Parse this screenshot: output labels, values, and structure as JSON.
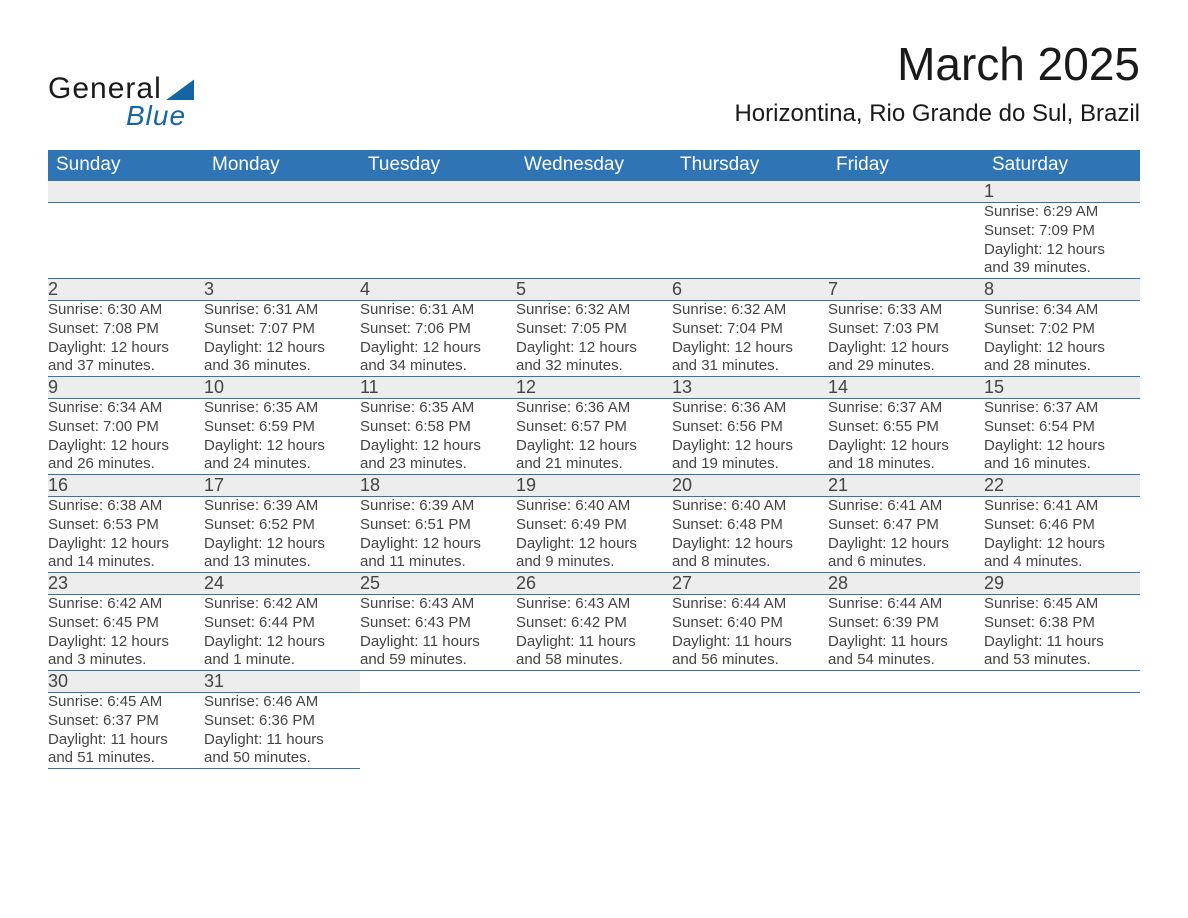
{
  "logo": {
    "word1": "General",
    "word2": "Blue",
    "triangle_color": "#1565a5"
  },
  "title": "March 2025",
  "location": "Horizontina, Rio Grande do Sul, Brazil",
  "colors": {
    "header_bg": "#2f74b5",
    "header_text": "#ffffff",
    "daynum_bg": "#ededed",
    "cell_text": "#444444",
    "border": "#2f74b5",
    "page_bg": "#ffffff",
    "title_text": "#1a1a1a"
  },
  "typography": {
    "title_fontsize": 46,
    "location_fontsize": 24,
    "weekday_fontsize": 19,
    "daynum_fontsize": 18,
    "detail_fontsize": 15,
    "font_family": "Arial, Helvetica, sans-serif"
  },
  "weekdays": [
    "Sunday",
    "Monday",
    "Tuesday",
    "Wednesday",
    "Thursday",
    "Friday",
    "Saturday"
  ],
  "weeks": [
    [
      null,
      null,
      null,
      null,
      null,
      null,
      {
        "day": "1",
        "sunrise": "Sunrise: 6:29 AM",
        "sunset": "Sunset: 7:09 PM",
        "daylight1": "Daylight: 12 hours",
        "daylight2": "and 39 minutes."
      }
    ],
    [
      {
        "day": "2",
        "sunrise": "Sunrise: 6:30 AM",
        "sunset": "Sunset: 7:08 PM",
        "daylight1": "Daylight: 12 hours",
        "daylight2": "and 37 minutes."
      },
      {
        "day": "3",
        "sunrise": "Sunrise: 6:31 AM",
        "sunset": "Sunset: 7:07 PM",
        "daylight1": "Daylight: 12 hours",
        "daylight2": "and 36 minutes."
      },
      {
        "day": "4",
        "sunrise": "Sunrise: 6:31 AM",
        "sunset": "Sunset: 7:06 PM",
        "daylight1": "Daylight: 12 hours",
        "daylight2": "and 34 minutes."
      },
      {
        "day": "5",
        "sunrise": "Sunrise: 6:32 AM",
        "sunset": "Sunset: 7:05 PM",
        "daylight1": "Daylight: 12 hours",
        "daylight2": "and 32 minutes."
      },
      {
        "day": "6",
        "sunrise": "Sunrise: 6:32 AM",
        "sunset": "Sunset: 7:04 PM",
        "daylight1": "Daylight: 12 hours",
        "daylight2": "and 31 minutes."
      },
      {
        "day": "7",
        "sunrise": "Sunrise: 6:33 AM",
        "sunset": "Sunset: 7:03 PM",
        "daylight1": "Daylight: 12 hours",
        "daylight2": "and 29 minutes."
      },
      {
        "day": "8",
        "sunrise": "Sunrise: 6:34 AM",
        "sunset": "Sunset: 7:02 PM",
        "daylight1": "Daylight: 12 hours",
        "daylight2": "and 28 minutes."
      }
    ],
    [
      {
        "day": "9",
        "sunrise": "Sunrise: 6:34 AM",
        "sunset": "Sunset: 7:00 PM",
        "daylight1": "Daylight: 12 hours",
        "daylight2": "and 26 minutes."
      },
      {
        "day": "10",
        "sunrise": "Sunrise: 6:35 AM",
        "sunset": "Sunset: 6:59 PM",
        "daylight1": "Daylight: 12 hours",
        "daylight2": "and 24 minutes."
      },
      {
        "day": "11",
        "sunrise": "Sunrise: 6:35 AM",
        "sunset": "Sunset: 6:58 PM",
        "daylight1": "Daylight: 12 hours",
        "daylight2": "and 23 minutes."
      },
      {
        "day": "12",
        "sunrise": "Sunrise: 6:36 AM",
        "sunset": "Sunset: 6:57 PM",
        "daylight1": "Daylight: 12 hours",
        "daylight2": "and 21 minutes."
      },
      {
        "day": "13",
        "sunrise": "Sunrise: 6:36 AM",
        "sunset": "Sunset: 6:56 PM",
        "daylight1": "Daylight: 12 hours",
        "daylight2": "and 19 minutes."
      },
      {
        "day": "14",
        "sunrise": "Sunrise: 6:37 AM",
        "sunset": "Sunset: 6:55 PM",
        "daylight1": "Daylight: 12 hours",
        "daylight2": "and 18 minutes."
      },
      {
        "day": "15",
        "sunrise": "Sunrise: 6:37 AM",
        "sunset": "Sunset: 6:54 PM",
        "daylight1": "Daylight: 12 hours",
        "daylight2": "and 16 minutes."
      }
    ],
    [
      {
        "day": "16",
        "sunrise": "Sunrise: 6:38 AM",
        "sunset": "Sunset: 6:53 PM",
        "daylight1": "Daylight: 12 hours",
        "daylight2": "and 14 minutes."
      },
      {
        "day": "17",
        "sunrise": "Sunrise: 6:39 AM",
        "sunset": "Sunset: 6:52 PM",
        "daylight1": "Daylight: 12 hours",
        "daylight2": "and 13 minutes."
      },
      {
        "day": "18",
        "sunrise": "Sunrise: 6:39 AM",
        "sunset": "Sunset: 6:51 PM",
        "daylight1": "Daylight: 12 hours",
        "daylight2": "and 11 minutes."
      },
      {
        "day": "19",
        "sunrise": "Sunrise: 6:40 AM",
        "sunset": "Sunset: 6:49 PM",
        "daylight1": "Daylight: 12 hours",
        "daylight2": "and 9 minutes."
      },
      {
        "day": "20",
        "sunrise": "Sunrise: 6:40 AM",
        "sunset": "Sunset: 6:48 PM",
        "daylight1": "Daylight: 12 hours",
        "daylight2": "and 8 minutes."
      },
      {
        "day": "21",
        "sunrise": "Sunrise: 6:41 AM",
        "sunset": "Sunset: 6:47 PM",
        "daylight1": "Daylight: 12 hours",
        "daylight2": "and 6 minutes."
      },
      {
        "day": "22",
        "sunrise": "Sunrise: 6:41 AM",
        "sunset": "Sunset: 6:46 PM",
        "daylight1": "Daylight: 12 hours",
        "daylight2": "and 4 minutes."
      }
    ],
    [
      {
        "day": "23",
        "sunrise": "Sunrise: 6:42 AM",
        "sunset": "Sunset: 6:45 PM",
        "daylight1": "Daylight: 12 hours",
        "daylight2": "and 3 minutes."
      },
      {
        "day": "24",
        "sunrise": "Sunrise: 6:42 AM",
        "sunset": "Sunset: 6:44 PM",
        "daylight1": "Daylight: 12 hours",
        "daylight2": "and 1 minute."
      },
      {
        "day": "25",
        "sunrise": "Sunrise: 6:43 AM",
        "sunset": "Sunset: 6:43 PM",
        "daylight1": "Daylight: 11 hours",
        "daylight2": "and 59 minutes."
      },
      {
        "day": "26",
        "sunrise": "Sunrise: 6:43 AM",
        "sunset": "Sunset: 6:42 PM",
        "daylight1": "Daylight: 11 hours",
        "daylight2": "and 58 minutes."
      },
      {
        "day": "27",
        "sunrise": "Sunrise: 6:44 AM",
        "sunset": "Sunset: 6:40 PM",
        "daylight1": "Daylight: 11 hours",
        "daylight2": "and 56 minutes."
      },
      {
        "day": "28",
        "sunrise": "Sunrise: 6:44 AM",
        "sunset": "Sunset: 6:39 PM",
        "daylight1": "Daylight: 11 hours",
        "daylight2": "and 54 minutes."
      },
      {
        "day": "29",
        "sunrise": "Sunrise: 6:45 AM",
        "sunset": "Sunset: 6:38 PM",
        "daylight1": "Daylight: 11 hours",
        "daylight2": "and 53 minutes."
      }
    ],
    [
      {
        "day": "30",
        "sunrise": "Sunrise: 6:45 AM",
        "sunset": "Sunset: 6:37 PM",
        "daylight1": "Daylight: 11 hours",
        "daylight2": "and 51 minutes."
      },
      {
        "day": "31",
        "sunrise": "Sunrise: 6:46 AM",
        "sunset": "Sunset: 6:36 PM",
        "daylight1": "Daylight: 11 hours",
        "daylight2": "and 50 minutes."
      },
      null,
      null,
      null,
      null,
      null
    ]
  ]
}
